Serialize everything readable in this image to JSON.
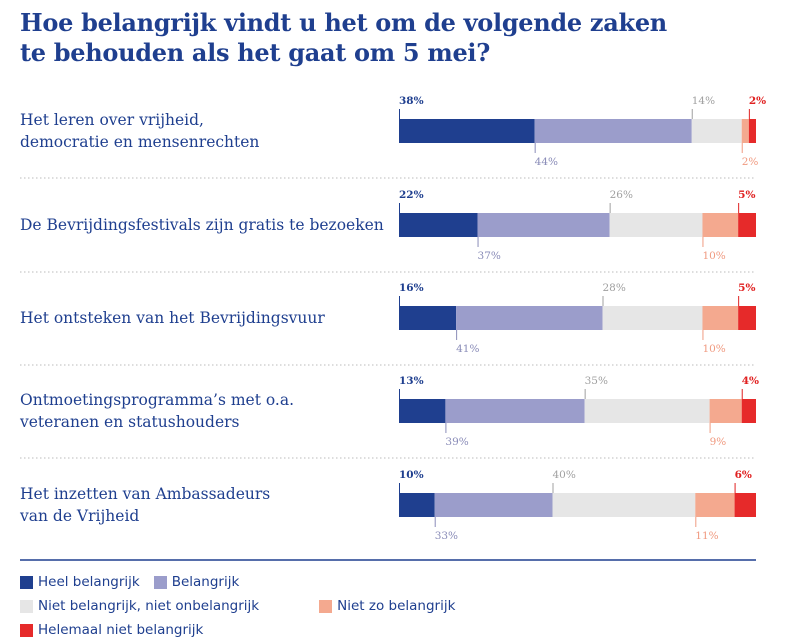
{
  "chart_data": {
    "type": "bar",
    "orientation": "horizontal",
    "stacked": true,
    "title": "Hoe belangrijk vindt u het om de volgende zaken\nte behouden als het gaat om 5 mei?",
    "categories": [
      "Het leren over vrijheid,\ndemocratie en mensenrechten",
      "De Bevrijdingsfestivals zijn gratis te bezoeken",
      "Het ontsteken van het Bevrijdingsvuur",
      "Ontmoetingsprogramma’s met o.a.\nveteranen en statushouders",
      "Het inzetten van Ambassadeurs\nvan de Vrijheid"
    ],
    "xlim": [
      0,
      100
    ],
    "series": [
      {
        "name": "Heel belangrijk",
        "color": "#1f3f8f",
        "label_color": "#1f3f8f",
        "values": [
          38,
          22,
          16,
          13,
          10
        ],
        "value_labels": [
          "38%",
          "22%",
          "16%",
          "13%",
          "10%"
        ]
      },
      {
        "name": "Belangrijk",
        "color": "#9b9dcb",
        "label_color": "#8a8cb8",
        "values": [
          44,
          37,
          41,
          39,
          33
        ],
        "value_labels": [
          "44%",
          "37%",
          "41%",
          "39%",
          "33%"
        ]
      },
      {
        "name": "Niet belangrijk, niet onbelangrijk",
        "color": "#e6e6e6",
        "label_color": "#a0a0a0",
        "values": [
          14,
          26,
          28,
          35,
          40
        ],
        "value_labels": [
          "14%",
          "26%",
          "28%",
          "35%",
          "40%"
        ]
      },
      {
        "name": "Niet zo belangrijk",
        "color": "#f4a98f",
        "label_color": "#f09a80",
        "values": [
          2,
          10,
          10,
          9,
          11
        ],
        "value_labels": [
          "2%",
          "10%",
          "10%",
          "9%",
          "11%"
        ]
      },
      {
        "name": "Helemaal niet belangrijk",
        "color": "#e62a2a",
        "label_color": "#e02020",
        "values": [
          2,
          5,
          5,
          4,
          6
        ],
        "value_labels": [
          "2%",
          "5%",
          "5%",
          "4%",
          "6%"
        ]
      }
    ]
  }
}
